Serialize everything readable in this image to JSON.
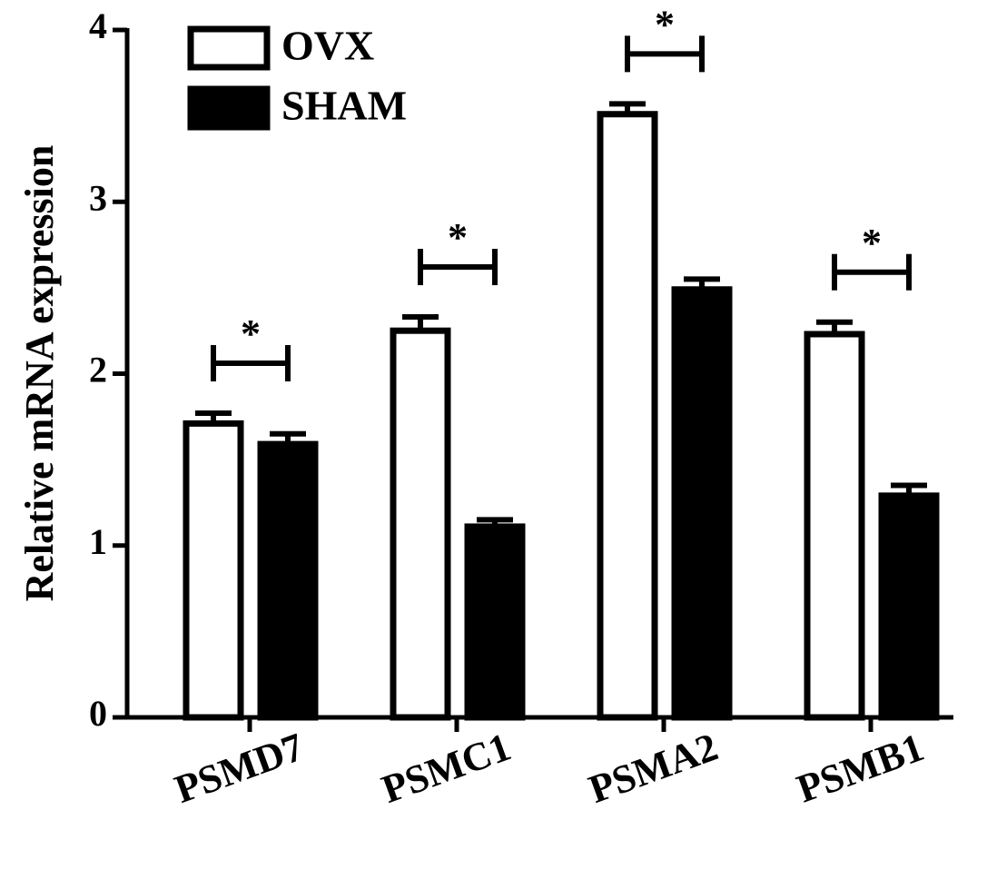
{
  "chart_data": {
    "type": "bar",
    "y_label": "Relative mRNA expression",
    "categories": [
      "PSMD7",
      "PSMC1",
      "PSMA2",
      "PSMB1"
    ],
    "series": [
      {
        "name": "OVX",
        "color": "#ffffff",
        "values": [
          1.71,
          2.25,
          3.51,
          2.23
        ],
        "errors": [
          0.06,
          0.08,
          0.06,
          0.07
        ]
      },
      {
        "name": "SHAM",
        "color": "#000000",
        "values": [
          1.59,
          1.11,
          2.49,
          1.29
        ],
        "errors": [
          0.06,
          0.04,
          0.06,
          0.06
        ]
      }
    ],
    "significance": [
      "*",
      "*",
      "*",
      "*"
    ],
    "ylim": [
      0,
      4
    ],
    "yticks": [
      0,
      1,
      2,
      3,
      4
    ],
    "grid": false,
    "legend": "top-left"
  }
}
